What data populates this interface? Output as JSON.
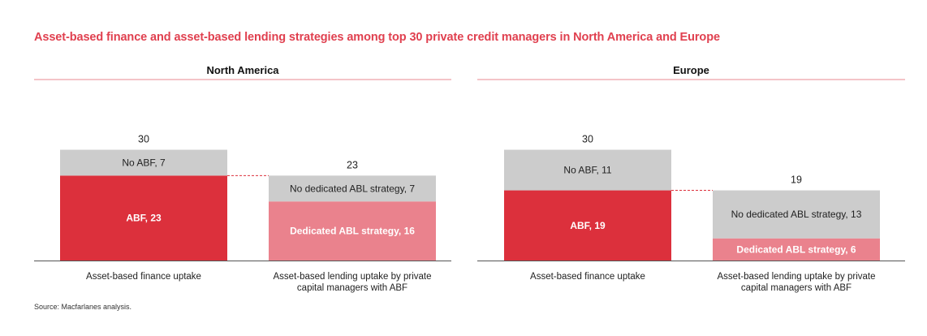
{
  "title": "Asset-based finance and asset-based lending strategies among top 30 private credit managers in North America and Europe",
  "source": "Source: Macfarlanes analysis.",
  "colors": {
    "title": "#e0404f",
    "abf": "#dc303c",
    "no_abf": "#cccccc",
    "dedicated_abl": "#ea828d",
    "no_dedicated_abl": "#cccccc",
    "divider": "#e88a92",
    "connector": "#dc303c"
  },
  "chart_data": [
    {
      "type": "bar",
      "title": "North America",
      "categories": [
        "Asset-based finance uptake",
        "Asset-based lending uptake by private capital managers with ABF"
      ],
      "category_lines": [
        [
          "Asset-based finance uptake"
        ],
        [
          "Asset-based lending uptake by private",
          "capital managers with ABF"
        ]
      ],
      "totals": [
        "30",
        "23"
      ],
      "stacks": [
        [
          {
            "label": "ABF, 23",
            "value": 23,
            "color_key": "abf",
            "text": "light"
          },
          {
            "label": "No ABF, 7",
            "value": 7,
            "color_key": "no_abf",
            "text": "dark"
          }
        ],
        [
          {
            "label": "Dedicated ABL strategy, 16",
            "value": 16,
            "color_key": "dedicated_abl",
            "text": "light"
          },
          {
            "label": "No dedicated ABL strategy, 7",
            "value": 7,
            "color_key": "no_dedicated_abl",
            "text": "dark"
          }
        ]
      ]
    },
    {
      "type": "bar",
      "title": "Europe",
      "categories": [
        "Asset-based finance uptake",
        "Asset-based lending uptake by private capital managers with ABF"
      ],
      "category_lines": [
        [
          "Asset-based finance uptake"
        ],
        [
          "Asset-based lending uptake by private",
          "capital managers with ABF"
        ]
      ],
      "totals": [
        "30",
        "19"
      ],
      "stacks": [
        [
          {
            "label": "ABF, 19",
            "value": 19,
            "color_key": "abf",
            "text": "light"
          },
          {
            "label": "No ABF, 11",
            "value": 11,
            "color_key": "no_abf",
            "text": "dark"
          }
        ],
        [
          {
            "label": "Dedicated ABL strategy, 6",
            "value": 6,
            "color_key": "dedicated_abl",
            "text": "light"
          },
          {
            "label": "No dedicated ABL strategy, 13",
            "value": 13,
            "color_key": "no_dedicated_abl",
            "text": "dark"
          }
        ]
      ]
    }
  ]
}
